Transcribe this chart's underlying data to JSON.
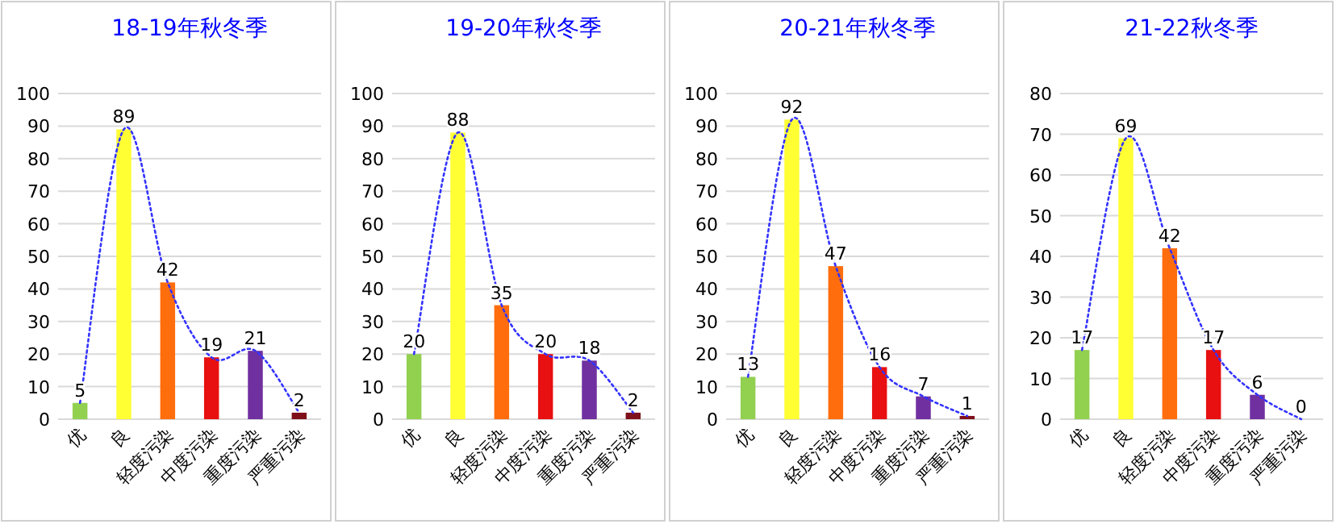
{
  "chart_data": [
    {
      "type": "bar",
      "title": "18-19年秋冬季",
      "categories": [
        "优",
        "良",
        "轻度污染",
        "中度污染",
        "重度污染",
        "严重污染"
      ],
      "ylim": [
        0,
        100
      ],
      "yticks": [
        0,
        10,
        20,
        30,
        40,
        50,
        60,
        70,
        80,
        90,
        100
      ],
      "grid": "y",
      "series": [
        {
          "colors": [
            "#92d050",
            "#ffff33",
            "#ff6d0d",
            "#e81010",
            "#7030a0",
            "#7f0f1a"
          ],
          "values": [
            5,
            89,
            42,
            19,
            21,
            2
          ],
          "value_labels": [
            "5",
            "89",
            "42",
            "19",
            "21",
            "2"
          ]
        },
        {
          "type": "line",
          "color": "#3333ff",
          "line_style": "dotted",
          "values": [
            5,
            89,
            42,
            19,
            21,
            2
          ]
        }
      ]
    },
    {
      "type": "bar",
      "title": "19-20年秋冬季",
      "categories": [
        "优",
        "良",
        "轻度污染",
        "中度污染",
        "重度污染",
        "严重污染"
      ],
      "ylim": [
        0,
        100
      ],
      "yticks": [
        0,
        10,
        20,
        30,
        40,
        50,
        60,
        70,
        80,
        90,
        100
      ],
      "grid": "y",
      "series": [
        {
          "colors": [
            "#92d050",
            "#ffff33",
            "#ff6d0d",
            "#e81010",
            "#7030a0",
            "#7f0f1a"
          ],
          "values": [
            20,
            88,
            35,
            20,
            18,
            2
          ],
          "value_labels": [
            "20",
            "88",
            "35",
            "20",
            "18",
            "2"
          ]
        },
        {
          "type": "line",
          "color": "#3333ff",
          "line_style": "dotted",
          "values": [
            20,
            88,
            35,
            20,
            18,
            2
          ]
        }
      ]
    },
    {
      "type": "bar",
      "title": "20-21年秋冬季",
      "categories": [
        "优",
        "良",
        "轻度污染",
        "中度污染",
        "重度污染",
        "严重污染"
      ],
      "ylim": [
        0,
        100
      ],
      "yticks": [
        0,
        10,
        20,
        30,
        40,
        50,
        60,
        70,
        80,
        90,
        100
      ],
      "grid": "y",
      "series": [
        {
          "colors": [
            "#92d050",
            "#ffff33",
            "#ff6d0d",
            "#e81010",
            "#7030a0",
            "#7f0f1a"
          ],
          "values": [
            13,
            92,
            47,
            16,
            7,
            1
          ],
          "value_labels": [
            "13",
            "92",
            "47",
            "16",
            "7",
            "1"
          ]
        },
        {
          "type": "line",
          "color": "#3333ff",
          "line_style": "dotted",
          "values": [
            13,
            92,
            47,
            16,
            7,
            1
          ]
        }
      ]
    },
    {
      "type": "bar",
      "title": "21-22秋冬季",
      "categories": [
        "优",
        "良",
        "轻度污染",
        "中度污染",
        "重度污染",
        "严重污染"
      ],
      "ylim": [
        0,
        80
      ],
      "yticks": [
        0,
        10,
        20,
        30,
        40,
        50,
        60,
        70,
        80
      ],
      "grid": "y",
      "series": [
        {
          "colors": [
            "#92d050",
            "#ffff33",
            "#ff6d0d",
            "#e81010",
            "#7030a0",
            "#7f0f1a"
          ],
          "values": [
            17,
            69,
            42,
            17,
            6,
            0
          ],
          "value_labels": [
            "17",
            "69",
            "42",
            "17",
            "6",
            "0"
          ]
        },
        {
          "type": "line",
          "color": "#3333ff",
          "line_style": "dotted",
          "values": [
            17,
            69,
            42,
            17,
            6,
            0
          ]
        }
      ]
    }
  ]
}
